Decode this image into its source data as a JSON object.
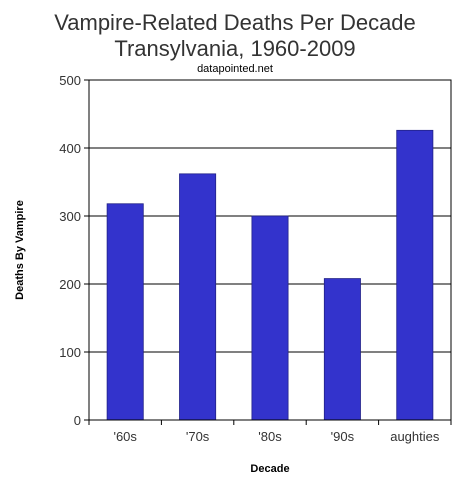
{
  "chart_data": {
    "type": "bar",
    "title": "Vampire-Related Deaths Per Decade",
    "subtitle": "Transylvania, 1960-2009",
    "source": "datapointed.net",
    "xlabel": "Decade",
    "ylabel": "Deaths By Vampire",
    "categories": [
      "'60s",
      "'70s",
      "'80s",
      "'90s",
      "aughties"
    ],
    "values": [
      318,
      362,
      300,
      208,
      426
    ],
    "ylim": [
      0,
      500
    ],
    "yticks": [
      0,
      100,
      200,
      300,
      400,
      500
    ],
    "grid": true,
    "legend": "none",
    "bar_color": "#3333cc"
  }
}
